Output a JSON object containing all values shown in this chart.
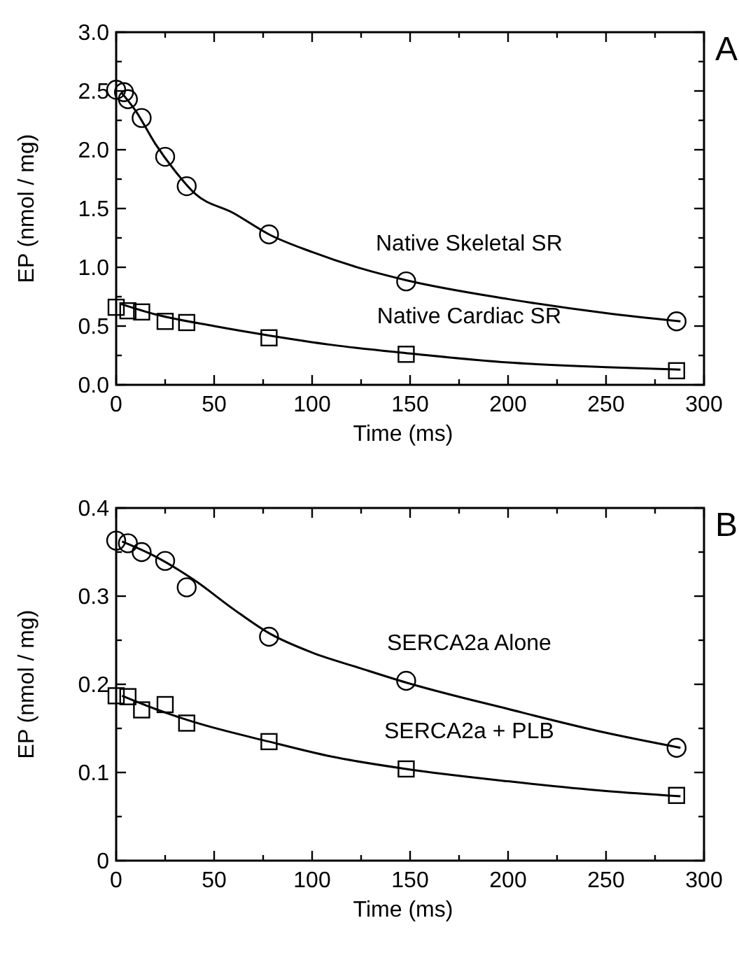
{
  "chart_data": [
    {
      "type": "scatter",
      "xlabel": "Time (ms)",
      "ylabel": "EP (nmol / mg)",
      "xlim": [
        0,
        300
      ],
      "ylim": [
        0,
        3
      ],
      "xticks": [
        0,
        {
          "value": 25,
          "label": null
        },
        50,
        {
          "value": 75,
          "label": null
        },
        100,
        {
          "value": 125,
          "label": null
        },
        150,
        {
          "value": 175,
          "label": null
        },
        200,
        {
          "value": 225,
          "label": null
        },
        250,
        {
          "value": 275,
          "label": null
        },
        300
      ],
      "yticks": [
        {
          "value": 0,
          "label": "0.0"
        },
        {
          "value": 0.25,
          "label": null
        },
        {
          "value": 0.5,
          "label": "0.5"
        },
        {
          "value": 0.75,
          "label": null
        },
        {
          "value": 1,
          "label": "1.0"
        },
        {
          "value": 1.25,
          "label": null
        },
        {
          "value": 1.5,
          "label": "1.5"
        },
        {
          "value": 1.75,
          "label": null
        },
        {
          "value": 2,
          "label": "2.0"
        },
        {
          "value": 2.25,
          "label": null
        },
        {
          "value": 2.5,
          "label": "2.5"
        },
        {
          "value": 2.75,
          "label": null
        },
        {
          "value": 3,
          "label": "3.0"
        }
      ],
      "grid": false,
      "annotations": [
        "A"
      ],
      "series": [
        {
          "name": "Native Skeletal SR",
          "marker": "circle",
          "color": "#000000",
          "x": [
            0,
            4,
            6,
            13,
            25,
            36,
            78,
            148,
            286
          ],
          "values": [
            2.51,
            2.49,
            2.43,
            2.27,
            1.94,
            1.69,
            1.28,
            0.88,
            0.54
          ]
        },
        {
          "name": "Native Cardiac SR",
          "marker": "square",
          "color": "#000000",
          "x": [
            0,
            6,
            13,
            25,
            36,
            78,
            148,
            286
          ],
          "values": [
            0.66,
            0.63,
            0.62,
            0.54,
            0.53,
            0.4,
            0.26,
            0.12
          ]
        },
        {
          "type": "line",
          "color": "#000000",
          "x": [
            3,
            10,
            20,
            30,
            40,
            60,
            78,
            100,
            125,
            148,
            200,
            250,
            288
          ],
          "values": [
            2.48,
            2.33,
            2.05,
            1.82,
            1.63,
            1.46,
            1.28,
            1.13,
            0.99,
            0.89,
            0.73,
            0.61,
            0.54
          ]
        },
        {
          "type": "line",
          "color": "#000000",
          "x": [
            2,
            20,
            50,
            78,
            110,
            148,
            200,
            250,
            288
          ],
          "values": [
            0.69,
            0.6,
            0.5,
            0.42,
            0.34,
            0.27,
            0.19,
            0.15,
            0.13
          ]
        }
      ]
    },
    {
      "type": "scatter",
      "xlabel": "Time (ms)",
      "ylabel": "EP (nmol / mg)",
      "xlim": [
        0,
        300
      ],
      "ylim": [
        0,
        0.4
      ],
      "xticks": [
        0,
        {
          "value": 25,
          "label": null
        },
        50,
        {
          "value": 75,
          "label": null
        },
        100,
        {
          "value": 125,
          "label": null
        },
        150,
        {
          "value": 175,
          "label": null
        },
        200,
        {
          "value": 225,
          "label": null
        },
        250,
        {
          "value": 275,
          "label": null
        },
        300
      ],
      "yticks": [
        0,
        {
          "value": 0.05,
          "label": null
        },
        0.1,
        {
          "value": 0.15,
          "label": null
        },
        0.2,
        {
          "value": 0.25,
          "label": null
        },
        0.3,
        {
          "value": 0.35,
          "label": null
        },
        0.4
      ],
      "grid": false,
      "annotations": [
        "B"
      ],
      "series": [
        {
          "name": "SERCA2a Alone",
          "marker": "circle",
          "color": "#000000",
          "x": [
            0,
            6,
            13,
            25,
            36,
            78,
            148,
            286
          ],
          "values": [
            0.363,
            0.36,
            0.35,
            0.34,
            0.31,
            0.254,
            0.204,
            0.128
          ]
        },
        {
          "name": "SERCA2a + PLB",
          "marker": "square",
          "color": "#000000",
          "x": [
            0,
            6,
            13,
            25,
            36,
            78,
            148,
            286
          ],
          "values": [
            0.187,
            0.186,
            0.171,
            0.177,
            0.156,
            0.135,
            0.104,
            0.074
          ]
        },
        {
          "type": "line",
          "color": "#000000",
          "x": [
            3,
            20,
            40,
            60,
            78,
            100,
            125,
            148,
            200,
            250,
            288
          ],
          "values": [
            0.362,
            0.345,
            0.318,
            0.285,
            0.258,
            0.236,
            0.218,
            0.202,
            0.172,
            0.145,
            0.128
          ]
        },
        {
          "type": "line",
          "color": "#000000",
          "x": [
            3,
            20,
            40,
            78,
            110,
            148,
            200,
            250,
            288
          ],
          "values": [
            0.187,
            0.172,
            0.157,
            0.135,
            0.118,
            0.104,
            0.09,
            0.079,
            0.073
          ]
        }
      ]
    }
  ]
}
